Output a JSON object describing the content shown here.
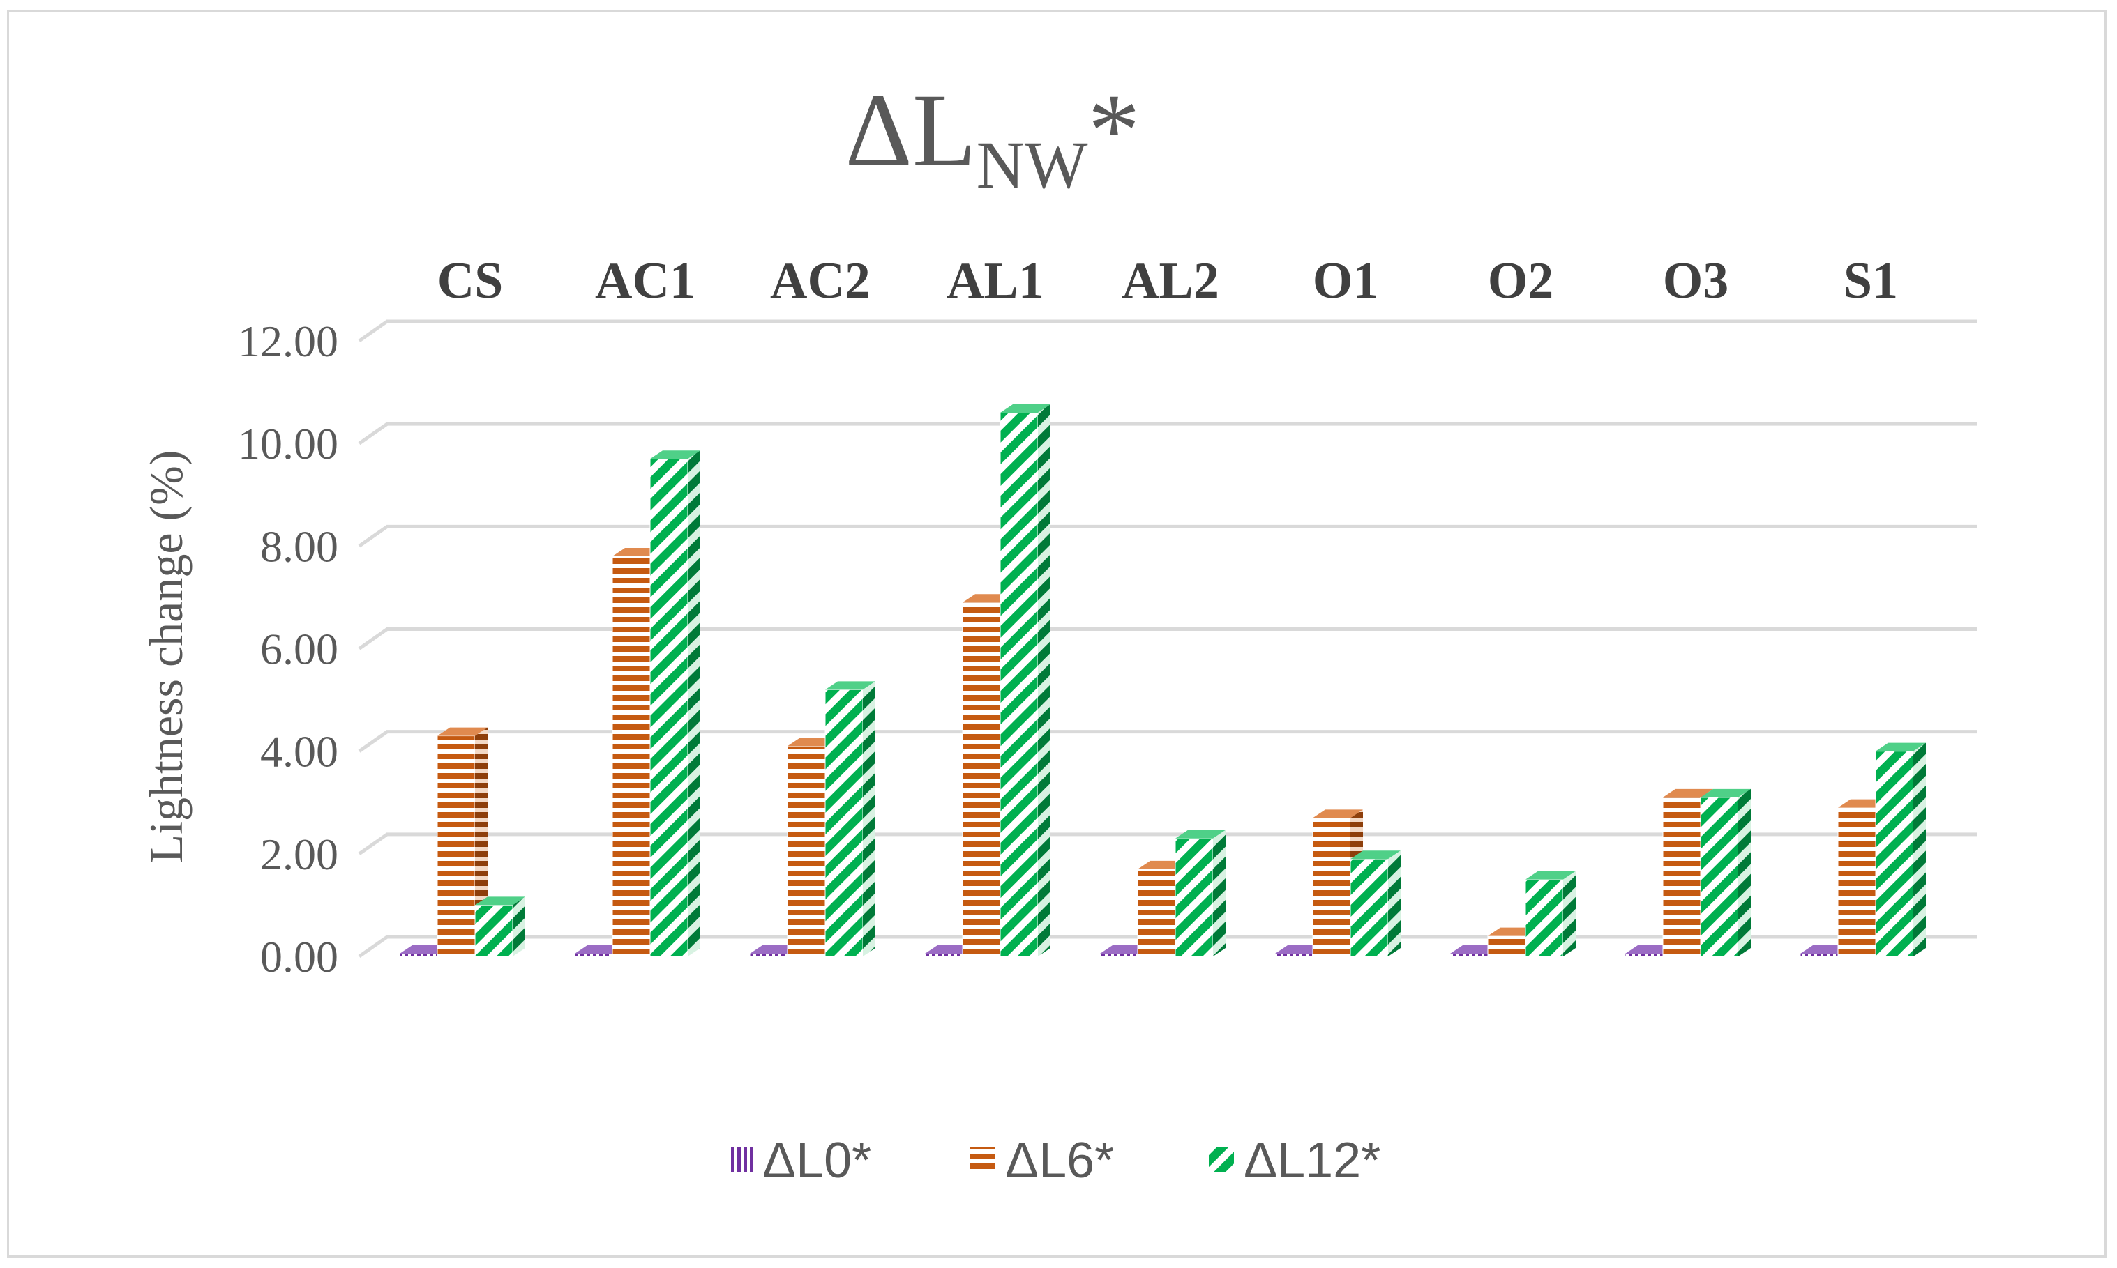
{
  "chart_data": {
    "type": "bar",
    "title": "ΔL",
    "title_subscript": "NW",
    "title_suffix": "*",
    "ylabel": "Lightness change (%)",
    "xlabel": "",
    "ylim": [
      0,
      12
    ],
    "yticks": [
      "0.00",
      "2.00",
      "4.00",
      "6.00",
      "8.00",
      "10.00",
      "12.00"
    ],
    "ytick_values": [
      0,
      2,
      4,
      6,
      8,
      10,
      12
    ],
    "categories": [
      "CS",
      "AC1",
      "AC2",
      "AL1",
      "AL2",
      "O1",
      "O2",
      "O3",
      "S1"
    ],
    "category_axis_position": "top",
    "grid": true,
    "legend_position": "bottom",
    "style": "3d-clustered-column",
    "series": [
      {
        "name": "ΔL0*",
        "color": "#7030a0",
        "pattern": "vertical-stripes",
        "values": [
          0,
          0,
          0,
          0,
          0,
          0,
          0,
          0,
          0
        ]
      },
      {
        "name": "ΔL6*",
        "color": "#c55a11",
        "pattern": "horizontal-stripes",
        "values": [
          4.3,
          7.8,
          4.1,
          6.9,
          1.7,
          2.7,
          0.4,
          3.1,
          2.9
        ]
      },
      {
        "name": "ΔL12*",
        "color": "#00b050",
        "pattern": "diagonal-stripes",
        "values": [
          1.0,
          9.7,
          5.2,
          10.6,
          2.3,
          1.9,
          1.5,
          3.1,
          4.0
        ]
      }
    ]
  }
}
